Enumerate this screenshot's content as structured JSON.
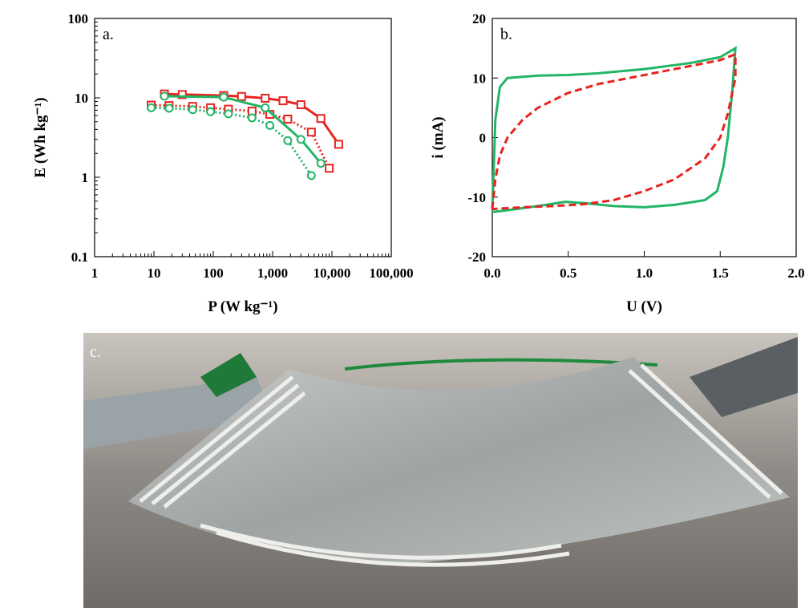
{
  "chart_data": [
    {
      "type": "line",
      "panel_label": "a.",
      "x_label": "P (W kg⁻¹)",
      "y_label": "E (Wh kg⁻¹)",
      "xlog": true,
      "ylog": true,
      "xlim": [
        1,
        100000
      ],
      "ylim": [
        0.1,
        100
      ],
      "xticks": [
        1,
        10,
        100,
        {
          "value": 1000,
          "label": "1,000"
        },
        {
          "value": 10000,
          "label": "10,000"
        },
        {
          "value": 100000,
          "label": "100,000"
        }
      ],
      "yticks": [
        0.1,
        1,
        10,
        100
      ],
      "series": [
        {
          "color": "#e8231f",
          "dash": "solid",
          "marker": "square",
          "x": [
            15,
            30,
            150,
            300,
            750,
            1500,
            3000,
            6500,
            13000
          ],
          "values": [
            11.2,
            11,
            10.7,
            10.4,
            9.9,
            9.2,
            8.2,
            5.5,
            2.6
          ]
        },
        {
          "color": "#e8231f",
          "dash": "dotted",
          "marker": "square",
          "x": [
            9,
            18,
            45,
            90,
            180,
            450,
            900,
            1800,
            4500,
            9000
          ],
          "values": [
            8.1,
            8,
            7.8,
            7.5,
            7.2,
            6.8,
            6.2,
            5.4,
            3.7,
            1.3
          ]
        },
        {
          "color": "#22b566",
          "dash": "solid",
          "marker": "circle",
          "x": [
            15,
            150,
            750,
            3000,
            6500
          ],
          "values": [
            10.5,
            10.2,
            7.5,
            3.0,
            1.5
          ]
        },
        {
          "color": "#22b566",
          "dash": "dotted",
          "marker": "circle",
          "x": [
            9,
            18,
            45,
            90,
            180,
            450,
            900,
            1800,
            4500
          ],
          "values": [
            7.5,
            7.4,
            7.1,
            6.7,
            6.3,
            5.6,
            4.5,
            2.9,
            1.05
          ]
        }
      ]
    },
    {
      "type": "line",
      "panel_label": "b.",
      "x_label": "U (V)",
      "y_label": "i (mA)",
      "xlog": false,
      "ylog": false,
      "xlim": [
        0,
        2
      ],
      "ylim": [
        -20,
        20
      ],
      "xticks": [
        {
          "value": 0,
          "label": "0.0"
        },
        0.5,
        {
          "value": 1,
          "label": "1.0"
        },
        1.5,
        {
          "value": 2,
          "label": "2.0"
        }
      ],
      "yticks": [
        -20,
        -10,
        0,
        10,
        20
      ],
      "series": [
        {
          "color": "#22b566",
          "dash": "solid",
          "marker": "none",
          "x": [
            0,
            0.01,
            0.02,
            0.05,
            0.1,
            0.3,
            0.5,
            0.7,
            1.0,
            1.3,
            1.5,
            1.6,
            1.58,
            1.55,
            1.52,
            1.48,
            1.4,
            1.2,
            1.0,
            0.8,
            0.6,
            0.48,
            0.3,
            0.1,
            0
          ],
          "values": [
            -12,
            -5,
            3,
            8.5,
            10,
            10.4,
            10.5,
            10.8,
            11.5,
            12.5,
            13.5,
            15,
            8,
            0,
            -5,
            -9,
            -10.5,
            -11.3,
            -11.7,
            -11.5,
            -11,
            -10.8,
            -11.5,
            -12.2,
            -12.5
          ]
        },
        {
          "color": "#e8231f",
          "dash": "dashed",
          "marker": "none",
          "x": [
            0,
            0.02,
            0.05,
            0.1,
            0.2,
            0.3,
            0.5,
            0.7,
            1.0,
            1.3,
            1.5,
            1.6,
            1.6,
            1.55,
            1.5,
            1.4,
            1.2,
            1.0,
            0.8,
            0.6,
            0.4,
            0.2,
            0
          ],
          "values": [
            -12,
            -7,
            -3,
            0,
            3,
            5,
            7.5,
            9,
            10.5,
            12,
            13,
            14,
            10,
            4,
            0,
            -3.5,
            -7,
            -9,
            -10.5,
            -11.2,
            -11.5,
            -11.7,
            -12
          ]
        }
      ]
    }
  ],
  "photo": {
    "panel_label": "c."
  }
}
